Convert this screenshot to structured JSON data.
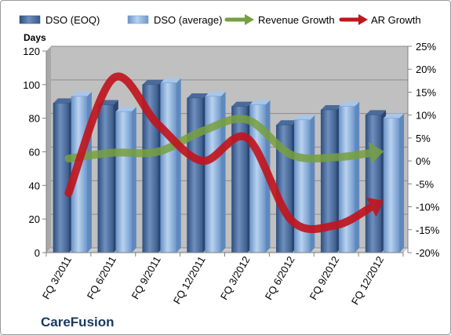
{
  "chart_data": {
    "type": "bar",
    "categories": [
      "FQ 3/2011",
      "FQ 6/2011",
      "FQ 9/2011",
      "FQ 12/2011",
      "FQ 3/2012",
      "FQ 6/2012",
      "FQ 9/2012",
      "FQ 12/2012"
    ],
    "series": [
      {
        "name": "DSO (EOQ)",
        "type": "bar",
        "axis": "left",
        "color": "#4f6fa0",
        "values": [
          89,
          88,
          100,
          92,
          87,
          76,
          85,
          82
        ]
      },
      {
        "name": "DSO (average)",
        "type": "bar",
        "axis": "left",
        "color": "#8eb4e3",
        "values": [
          93,
          84,
          101,
          93,
          88,
          79,
          87,
          80
        ]
      },
      {
        "name": "Revenue Growth",
        "type": "line",
        "axis": "right",
        "unit": "%",
        "color": "#77a03f",
        "values": [
          0.5,
          1.8,
          2.0,
          6.5,
          9.0,
          1.3,
          0.8,
          2.0
        ]
      },
      {
        "name": "AR Growth",
        "type": "line",
        "axis": "right",
        "unit": "%",
        "color": "#c0161e",
        "values": [
          -7,
          18,
          8,
          0,
          5,
          -13,
          -14,
          -9
        ]
      }
    ],
    "ylabel": "Days",
    "ylim": [
      0,
      120
    ],
    "yticks": [
      "0",
      "20",
      "40",
      "60",
      "80",
      "100",
      "120"
    ],
    "y2lim": [
      -20,
      25
    ],
    "y2ticks": [
      "-20%",
      "-15%",
      "-10%",
      "-5%",
      "0%",
      "5%",
      "10%",
      "15%",
      "20%",
      "25%"
    ],
    "grid": true,
    "legend": "top",
    "plot_background": "#c0c0c0",
    "annotation": "CareFusion"
  }
}
